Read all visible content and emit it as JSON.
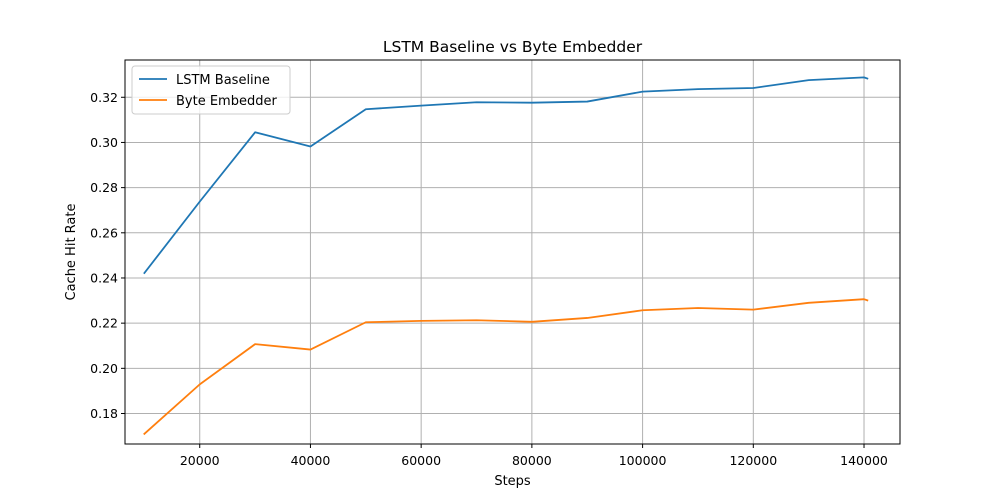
{
  "chart_data": {
    "type": "line",
    "title": "LSTM Baseline vs Byte Embedder",
    "xlabel": "Steps",
    "ylabel": "Cache Hit Rate",
    "xlim": [
      6500,
      146500
    ],
    "ylim": [
      0.1665,
      0.3365
    ],
    "xticks": [
      20000,
      40000,
      60000,
      80000,
      100000,
      120000,
      140000
    ],
    "xtick_labels": [
      "20000",
      "40000",
      "60000",
      "80000",
      "100000",
      "120000",
      "140000"
    ],
    "yticks": [
      0.18,
      0.2,
      0.22,
      0.24,
      0.26,
      0.28,
      0.3,
      0.32
    ],
    "ytick_labels": [
      "0.18",
      "0.20",
      "0.22",
      "0.24",
      "0.26",
      "0.28",
      "0.30",
      "0.32"
    ],
    "grid": true,
    "legend": "top-left",
    "x": [
      10000,
      20000,
      30000,
      40000,
      50000,
      60000,
      70000,
      80000,
      90000,
      100000,
      110000,
      120000,
      130000,
      140000,
      140600
    ],
    "series": [
      {
        "name": "LSTM Baseline",
        "color": "#1f77b4",
        "values": [
          0.2422,
          0.2738,
          0.3045,
          0.2982,
          0.3147,
          0.3163,
          0.3178,
          0.3176,
          0.3181,
          0.3225,
          0.3236,
          0.3241,
          0.3276,
          0.3288,
          0.3283
        ]
      },
      {
        "name": "Byte Embedder",
        "color": "#ff7f0e",
        "values": [
          0.171,
          0.1929,
          0.2107,
          0.2083,
          0.2204,
          0.221,
          0.2213,
          0.2206,
          0.2223,
          0.2257,
          0.2267,
          0.226,
          0.229,
          0.2306,
          0.2301
        ]
      }
    ]
  }
}
